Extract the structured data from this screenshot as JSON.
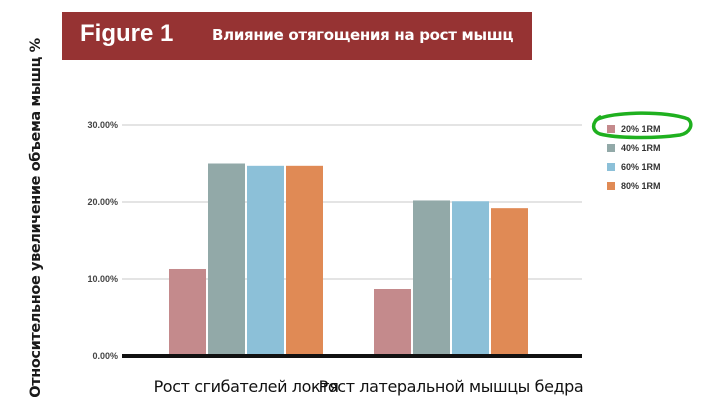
{
  "banner": {
    "figure_label": "Figure 1",
    "title": "Влияние отягощения на рост мышц",
    "color": "#963333"
  },
  "chart_data": {
    "type": "bar",
    "title": "Влияние отягощения на рост мышц",
    "ylabel": "Относительное увеличение объема мышц %",
    "xlabel": "",
    "ylim": [
      0,
      0.3
    ],
    "yticks": [
      "0.00%",
      "10.00%",
      "20.00%",
      "30.00%"
    ],
    "grid": true,
    "legend_position": "right",
    "categories": [
      "Рост сгибателей локтя",
      "Рост латеральной мышцы бедра"
    ],
    "series": [
      {
        "name": "20% 1RM",
        "color": "#c48a8c",
        "values": [
          0.113,
          0.087
        ]
      },
      {
        "name": "40% 1RM",
        "color": "#92a9a8",
        "values": [
          0.25,
          0.202
        ]
      },
      {
        "name": "60% 1RM",
        "color": "#8cc0d8",
        "values": [
          0.247,
          0.201
        ]
      },
      {
        "name": "80% 1RM",
        "color": "#e08a55",
        "values": [
          0.247,
          0.192
        ]
      }
    ],
    "annotation": {
      "type": "highlight-circle",
      "target": "20% 1RM",
      "color": "#1fb01f"
    }
  }
}
